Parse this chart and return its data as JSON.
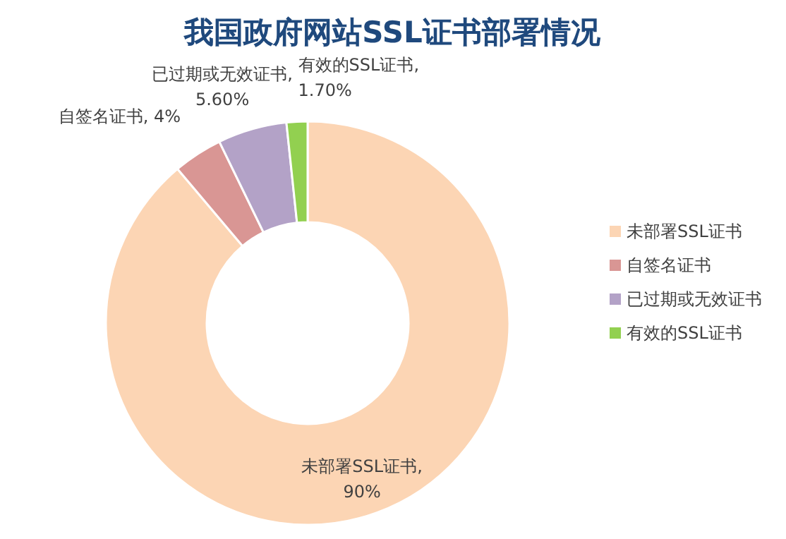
{
  "chart_data": {
    "type": "donut",
    "title": "我国政府网站SSL证书部署情况",
    "categories": [
      "未部署SSL证书",
      "自签名证书",
      "已过期或无效证书",
      "有效的SSL证书"
    ],
    "values": [
      90,
      4,
      5.6,
      1.7
    ],
    "value_labels": [
      "未部署SSL证书, 90%",
      "自签名证书, 4%",
      "已过期或无效证书, 5.60%",
      "有效的SSL证书, 1.70%"
    ],
    "colors": [
      "#fcd5b4",
      "#d99694",
      "#b3a2c7",
      "#92d050"
    ],
    "legend": "right"
  }
}
